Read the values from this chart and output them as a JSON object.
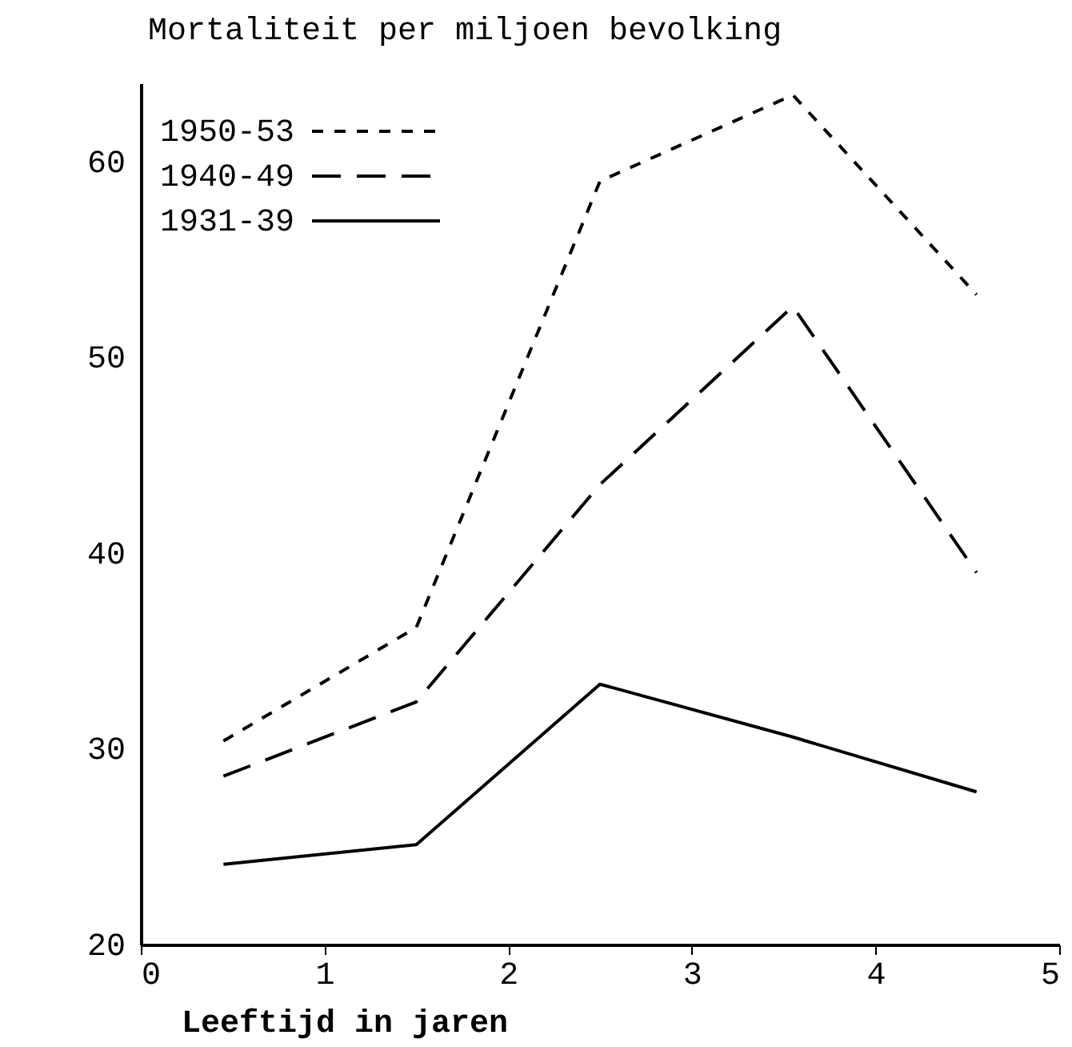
{
  "chart_data": {
    "type": "line",
    "ylabel": "Mortaliteit per miljoen bevolking",
    "xlabel": "Leeftijd in jaren",
    "x": [
      0.45,
      1.5,
      2.5,
      3.55,
      4.55
    ],
    "series": [
      {
        "name": "1950-53",
        "color": "#000000",
        "line_style": "dotted",
        "values": [
          30.4,
          36.2,
          59.0,
          63.4,
          53.2
        ]
      },
      {
        "name": "1940-49",
        "color": "#000000",
        "line_style": "dashed",
        "values": [
          28.6,
          32.4,
          43.5,
          52.6,
          39.0
        ]
      },
      {
        "name": "1931-39",
        "color": "#000000",
        "line_style": "solid",
        "values": [
          24.1,
          25.1,
          33.3,
          30.6,
          27.8
        ]
      }
    ],
    "xlim": [
      0,
      5
    ],
    "xticks": [
      0,
      1,
      2,
      3,
      4,
      5
    ],
    "ylim": [
      20,
      64
    ],
    "yticks": [
      20,
      30,
      40,
      50,
      60
    ],
    "legend": "top left",
    "marker": "none"
  }
}
